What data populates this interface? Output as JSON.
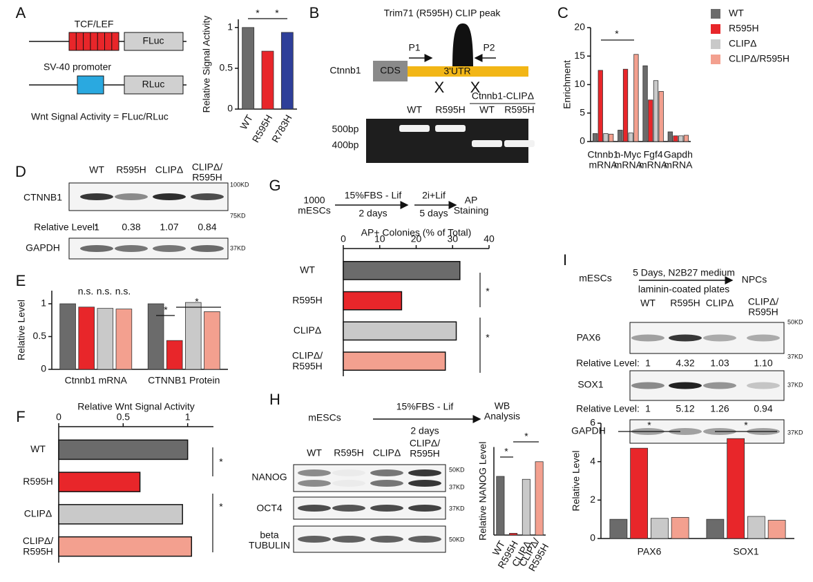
{
  "panels": {
    "A": {
      "label": "A",
      "promoter_1": "TCF/LEF",
      "reporter_1": "FLuc",
      "promoter_2": "SV-40 promoter",
      "reporter_2": "RLuc",
      "formula": "Wnt Signal Activity = FLuc/RLuc"
    },
    "B": {
      "label": "B",
      "title": "Trim71 (R595H) CLIP peak",
      "gene": "Ctnnb1",
      "cds": "CDS",
      "utr": "3'UTR",
      "primers": [
        "P1",
        "P2"
      ],
      "deletions": [
        "X",
        "X"
      ],
      "gel_lanes": [
        "WT",
        "R595H",
        "WT",
        "R595H"
      ],
      "gel_group": "Ctnnb1-CLIPΔ",
      "sizes": [
        "500bp",
        "400bp"
      ]
    },
    "C": {
      "label": "C"
    },
    "D": {
      "label": "D",
      "lanes": [
        "WT",
        "R595H",
        "CLIPΔ",
        "CLIPΔ/\nR595H"
      ],
      "blots": [
        "CTNNB1",
        "GAPDH"
      ],
      "markers": [
        "100KD",
        "75KD",
        "37KD"
      ],
      "level_label": "Relative Level:",
      "levels": [
        "1",
        "0.38",
        "1.07",
        "0.84"
      ]
    },
    "E": {
      "label": "E"
    },
    "F": {
      "label": "F"
    },
    "G": {
      "label": "G",
      "steps": [
        "1000\nmESCs",
        "15%FBS - Lif",
        "2 days",
        "2i+Lif",
        "5 days",
        "AP\nStaining"
      ]
    },
    "H": {
      "label": "H",
      "steps": [
        "mESCs",
        "15%FBS - Lif",
        "2 days",
        "WB\nAnalysis"
      ],
      "lanes": [
        "WT",
        "R595H",
        "CLIPΔ",
        "CLIPΔ/\nR595H"
      ],
      "blots": [
        "NANOG",
        "OCT4",
        "beta\nTUBULIN"
      ],
      "markers": [
        "50KD",
        "37KD",
        "37KD",
        "50KD"
      ]
    },
    "I": {
      "label": "I",
      "steps": [
        "mESCs",
        "5 Days, N2B27 medium",
        "laminin-coated plates",
        "NPCs"
      ],
      "lanes": [
        "WT",
        "R595H",
        "CLIPΔ",
        "CLIPΔ/\nR595H"
      ],
      "blots": [
        "PAX6",
        "SOX1",
        "GAPDH"
      ],
      "markers": [
        "50KD",
        "37KD",
        "37KD",
        "37KD"
      ],
      "level_labels": [
        "Relative Level:",
        "Relative Level:"
      ],
      "levels": [
        [
          "1",
          "4.32",
          "1.03",
          "1.10"
        ],
        [
          "1",
          "5.12",
          "1.26",
          "0.94"
        ]
      ]
    }
  },
  "chart_data": [
    {
      "type": "bar",
      "ylabel": "Relative Signal Activity",
      "categories": [
        "WT",
        "R595H",
        "R783H"
      ],
      "values": [
        1.0,
        0.71,
        0.94
      ],
      "colors": [
        "#6b6b6b",
        "#e8262a",
        "#2e3f99"
      ],
      "ylim": [
        0,
        1.1
      ],
      "yticks": [
        0,
        0.5,
        1
      ],
      "annotations": [
        "*",
        "*"
      ]
    },
    {
      "type": "bar",
      "ylabel": "Enrichment",
      "categories": [
        "Ctnnb1\nmRNA",
        "n-Myc\nmRNA",
        "Fgf4\nmRNA",
        "Gapdh\nmRNA"
      ],
      "series": [
        {
          "name": "WT",
          "color": "#6b6b6b",
          "values": [
            1.4,
            2.0,
            13.3,
            1.7
          ]
        },
        {
          "name": "R595H",
          "color": "#e8262a",
          "values": [
            12.5,
            12.7,
            7.3,
            1.0
          ]
        },
        {
          "name": "CLIPΔ",
          "color": "#c9c9c9",
          "values": [
            1.4,
            1.5,
            10.7,
            1.0
          ]
        },
        {
          "name": "CLIPΔ/R595H",
          "color": "#f3a08f",
          "values": [
            1.3,
            15.3,
            8.8,
            1.1
          ]
        }
      ],
      "ylim": [
        0,
        20
      ],
      "yticks": [
        0,
        5,
        10,
        15,
        20
      ],
      "annotations": [
        "*"
      ]
    },
    {
      "type": "bar",
      "ylabel": "Relative Level",
      "categories": [
        "Ctnnb1 mRNA",
        "CTNNB1 Protein"
      ],
      "series": [
        {
          "color": "#6b6b6b",
          "values": [
            1.0,
            1.0
          ]
        },
        {
          "color": "#e8262a",
          "values": [
            0.95,
            0.44
          ]
        },
        {
          "color": "#c9c9c9",
          "values": [
            0.93,
            1.02
          ]
        },
        {
          "color": "#f3a08f",
          "values": [
            0.92,
            0.88
          ]
        }
      ],
      "ylim": [
        0,
        1.2
      ],
      "yticks": [
        0,
        0.5,
        1
      ],
      "annotations": [
        "n.s.",
        "n.s.",
        "n.s.",
        "*",
        "*"
      ]
    },
    {
      "type": "barh",
      "xlabel": "Relative Wnt Signal Activity",
      "categories": [
        "WT",
        "R595H",
        "CLIPΔ",
        "CLIPΔ/\nR595H"
      ],
      "values": [
        1.0,
        0.63,
        0.96,
        1.03
      ],
      "colors": [
        "#6b6b6b",
        "#e8262a",
        "#c9c9c9",
        "#f3a08f"
      ],
      "xlim": [
        0,
        1.2
      ],
      "xticks": [
        0,
        0.5,
        1
      ],
      "annotations": [
        "*",
        "*"
      ]
    },
    {
      "type": "barh",
      "xlabel": "AP+ Colonies (% of Total)",
      "categories": [
        "WT",
        "R595H",
        "CLIPΔ",
        "CLIPΔ/\nR595H"
      ],
      "values": [
        32,
        16,
        31,
        28
      ],
      "colors": [
        "#6b6b6b",
        "#e8262a",
        "#c9c9c9",
        "#f3a08f"
      ],
      "xlim": [
        0,
        40
      ],
      "xticks": [
        0,
        10,
        20,
        30,
        40
      ],
      "annotations": [
        "*",
        "*"
      ]
    },
    {
      "type": "bar",
      "ylabel": "Relative NANOG Level",
      "categories": [
        "WT",
        "R595H",
        "CLIPΔ",
        "CLIPΔ/\nR595H"
      ],
      "values": [
        1.0,
        0.03,
        0.95,
        1.25
      ],
      "colors": [
        "#6b6b6b",
        "#e8262a",
        "#c9c9c9",
        "#f3a08f"
      ],
      "ylim": [
        0,
        1.5
      ],
      "annotations": [
        "*",
        "*"
      ]
    },
    {
      "type": "bar",
      "ylabel": "Relative Level",
      "categories": [
        "PAX6",
        "SOX1"
      ],
      "series": [
        {
          "color": "#6b6b6b",
          "values": [
            1.0,
            1.0
          ]
        },
        {
          "color": "#e8262a",
          "values": [
            4.7,
            5.2
          ]
        },
        {
          "color": "#c9c9c9",
          "values": [
            1.05,
            1.15
          ]
        },
        {
          "color": "#f3a08f",
          "values": [
            1.1,
            0.95
          ]
        }
      ],
      "ylim": [
        0,
        6
      ],
      "yticks": [
        0,
        2,
        4,
        6
      ],
      "annotations": [
        "*",
        "*"
      ]
    }
  ]
}
